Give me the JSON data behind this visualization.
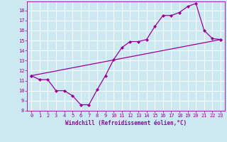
{
  "xlabel": "Windchill (Refroidissement éolien,°C)",
  "background_color": "#cce8f0",
  "line_color": "#990099",
  "grid_color": "#ffffff",
  "ylim": [
    8,
    18.9
  ],
  "xlim": [
    -0.5,
    23.5
  ],
  "yticks": [
    8,
    9,
    10,
    11,
    12,
    13,
    14,
    15,
    16,
    17,
    18
  ],
  "xticks": [
    0,
    1,
    2,
    3,
    4,
    5,
    6,
    7,
    8,
    9,
    10,
    11,
    12,
    13,
    14,
    15,
    16,
    17,
    18,
    19,
    20,
    21,
    22,
    23
  ],
  "series1_x": [
    0,
    1,
    2,
    3,
    4,
    5,
    6,
    7,
    8,
    9,
    10,
    11,
    12,
    13,
    14,
    15,
    16,
    17,
    18,
    19,
    20,
    21,
    22,
    23
  ],
  "series1_y": [
    11.5,
    11.1,
    11.1,
    10.0,
    10.0,
    9.5,
    8.6,
    8.6,
    10.1,
    11.5,
    13.1,
    14.3,
    14.9,
    14.9,
    15.1,
    16.4,
    17.5,
    17.5,
    17.8,
    18.4,
    18.7,
    16.0,
    15.2,
    15.1
  ],
  "series2_x": [
    0,
    23
  ],
  "series2_y": [
    11.5,
    15.1
  ],
  "marker": "D",
  "markersize": 2.2,
  "linewidth": 0.9,
  "tick_fontsize": 5.0,
  "xlabel_fontsize": 5.5
}
